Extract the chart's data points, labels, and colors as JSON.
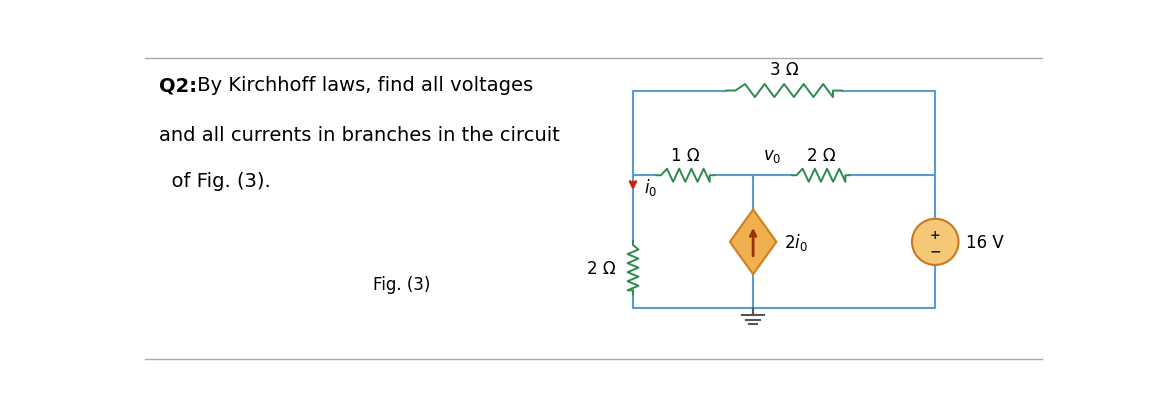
{
  "bg_color": "#ffffff",
  "wire_color": "#5b9bd5",
  "resistor_color": "#2d8a4e",
  "text_color": "#000000",
  "question_bold": "Q2:",
  "question_text1": " By Kirchhoff laws, find all voltages",
  "question_text2": "and all currents in branches in the circuit",
  "question_text3": "  of Fig. (3).",
  "fig_label": "Fig. (3)",
  "border_top_color": "#aaaaaa",
  "border_bottom_color": "#aaaaaa",
  "label_3ohm": "3 Ω",
  "label_1ohm": "1 Ω",
  "label_2ohm_right": "2 Ω",
  "label_2ohm_left": "2 Ω",
  "label_16v": "16 V",
  "dep_source_fill": "#f0b050",
  "dep_source_edge": "#d08020",
  "indep_source_fill": "#f5c878",
  "indep_source_edge": "#c87820",
  "arrow_color": "#cc2200",
  "ground_color": "#555555"
}
